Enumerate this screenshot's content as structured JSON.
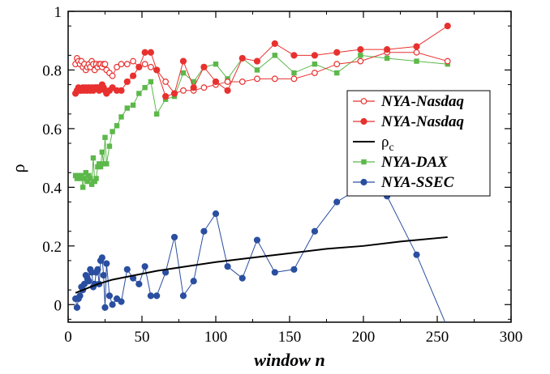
{
  "chart_data": {
    "type": "line",
    "xlabel": "window n",
    "ylabel": "ρ",
    "xlim": [
      0,
      300
    ],
    "ylim": [
      -0.06,
      1.0
    ],
    "x_ticks": [
      0,
      50,
      100,
      150,
      200,
      250,
      300
    ],
    "y_ticks": [
      0,
      0.2,
      0.4,
      0.6,
      0.8,
      1
    ],
    "x_tick_labels": [
      "0",
      "50",
      "100",
      "150",
      "200",
      "250",
      "300"
    ],
    "y_tick_labels": [
      "0",
      "0.2",
      "0.4",
      "0.6",
      "0.8",
      "1"
    ],
    "legend_position": "right",
    "series": [
      {
        "name": "NYA-Nasdaq",
        "style": "open-circle-line",
        "color": "#e8312f",
        "x": [
          5,
          6,
          7,
          8,
          9,
          10,
          11,
          12,
          13,
          14,
          15,
          16,
          17,
          18,
          19,
          20,
          21,
          22,
          23,
          24,
          25,
          26,
          28,
          30,
          33,
          36,
          40,
          44,
          48,
          52,
          56,
          60,
          66,
          72,
          78,
          85,
          92,
          100,
          108,
          118,
          128,
          140,
          153,
          167,
          182,
          198,
          216,
          236,
          257
        ],
        "y": [
          0.82,
          0.84,
          0.83,
          0.82,
          0.83,
          0.81,
          0.82,
          0.8,
          0.81,
          0.82,
          0.81,
          0.83,
          0.82,
          0.8,
          0.82,
          0.81,
          0.82,
          0.82,
          0.81,
          0.82,
          0.82,
          0.8,
          0.79,
          0.78,
          0.81,
          0.82,
          0.82,
          0.83,
          0.81,
          0.82,
          0.81,
          0.8,
          0.76,
          0.72,
          0.73,
          0.73,
          0.74,
          0.75,
          0.76,
          0.76,
          0.77,
          0.77,
          0.77,
          0.79,
          0.82,
          0.83,
          0.86,
          0.86,
          0.83
        ]
      },
      {
        "name": "NYA-Nasdaq",
        "style": "filled-circle-line",
        "color": "#e8312f",
        "x": [
          5,
          6,
          7,
          8,
          9,
          10,
          11,
          12,
          13,
          14,
          15,
          16,
          17,
          18,
          19,
          20,
          21,
          22,
          23,
          24,
          25,
          26,
          28,
          30,
          33,
          36,
          40,
          44,
          48,
          52,
          56,
          60,
          66,
          72,
          78,
          85,
          92,
          100,
          108,
          118,
          128,
          140,
          153,
          167,
          182,
          198,
          216,
          236,
          257
        ],
        "y": [
          0.72,
          0.73,
          0.74,
          0.73,
          0.73,
          0.74,
          0.73,
          0.74,
          0.73,
          0.74,
          0.73,
          0.74,
          0.73,
          0.74,
          0.74,
          0.74,
          0.73,
          0.74,
          0.75,
          0.74,
          0.73,
          0.72,
          0.73,
          0.74,
          0.73,
          0.73,
          0.76,
          0.78,
          0.81,
          0.86,
          0.86,
          0.8,
          0.71,
          0.72,
          0.83,
          0.74,
          0.81,
          0.76,
          0.73,
          0.84,
          0.83,
          0.89,
          0.85,
          0.85,
          0.86,
          0.87,
          0.87,
          0.88,
          0.95
        ]
      },
      {
        "name": "ρc",
        "style": "line",
        "color": "#000000",
        "x": [
          5,
          10,
          20,
          30,
          40,
          50,
          60,
          80,
          100,
          125,
          150,
          175,
          200,
          225,
          257
        ],
        "y": [
          0.04,
          0.05,
          0.07,
          0.085,
          0.095,
          0.105,
          0.115,
          0.13,
          0.145,
          0.16,
          0.175,
          0.19,
          0.2,
          0.215,
          0.23
        ]
      },
      {
        "name": "NYA-DAX",
        "style": "square-line",
        "color": "#5cb84a",
        "x": [
          5,
          6,
          7,
          8,
          9,
          10,
          11,
          12,
          13,
          14,
          15,
          16,
          17,
          18,
          19,
          20,
          21,
          22,
          23,
          24,
          25,
          26,
          28,
          30,
          33,
          36,
          40,
          44,
          48,
          52,
          56,
          60,
          66,
          72,
          78,
          85,
          92,
          100,
          108,
          118,
          128,
          140,
          153,
          167,
          182,
          198,
          216,
          236,
          257
        ],
        "y": [
          0.44,
          0.43,
          0.44,
          0.43,
          0.44,
          0.4,
          0.43,
          0.45,
          0.42,
          0.44,
          0.43,
          0.41,
          0.5,
          0.42,
          0.43,
          0.47,
          0.48,
          0.47,
          0.52,
          0.48,
          0.57,
          0.48,
          0.54,
          0.59,
          0.61,
          0.64,
          0.67,
          0.68,
          0.72,
          0.74,
          0.76,
          0.65,
          0.7,
          0.71,
          0.79,
          0.76,
          0.81,
          0.82,
          0.77,
          0.84,
          0.8,
          0.85,
          0.79,
          0.82,
          0.79,
          0.85,
          0.84,
          0.83,
          0.82
        ]
      },
      {
        "name": "NYA-SSEC",
        "style": "filled-circle-line",
        "color": "#2a4fa0",
        "x": [
          5,
          6,
          7,
          8,
          9,
          10,
          11,
          12,
          13,
          14,
          15,
          16,
          17,
          18,
          19,
          20,
          21,
          22,
          23,
          24,
          25,
          26,
          28,
          30,
          33,
          36,
          40,
          44,
          48,
          52,
          56,
          60,
          66,
          72,
          78,
          85,
          92,
          100,
          108,
          118,
          128,
          140,
          153,
          167,
          182,
          198,
          216,
          236,
          257
        ],
        "y": [
          0.02,
          -0.01,
          0.02,
          0.03,
          0.06,
          0.05,
          0.07,
          0.1,
          0.09,
          0.08,
          0.12,
          0.11,
          0.06,
          0.07,
          0.11,
          0.12,
          0.07,
          0.15,
          0.16,
          0.1,
          -0.01,
          0.14,
          0.03,
          0.0,
          0.02,
          0.01,
          0.12,
          0.09,
          0.07,
          0.13,
          0.03,
          0.03,
          0.11,
          0.23,
          0.03,
          0.08,
          0.25,
          0.31,
          0.13,
          0.09,
          0.22,
          0.11,
          0.12,
          0.25,
          0.35,
          0.4,
          0.37,
          0.17,
          -0.08
        ]
      }
    ]
  }
}
